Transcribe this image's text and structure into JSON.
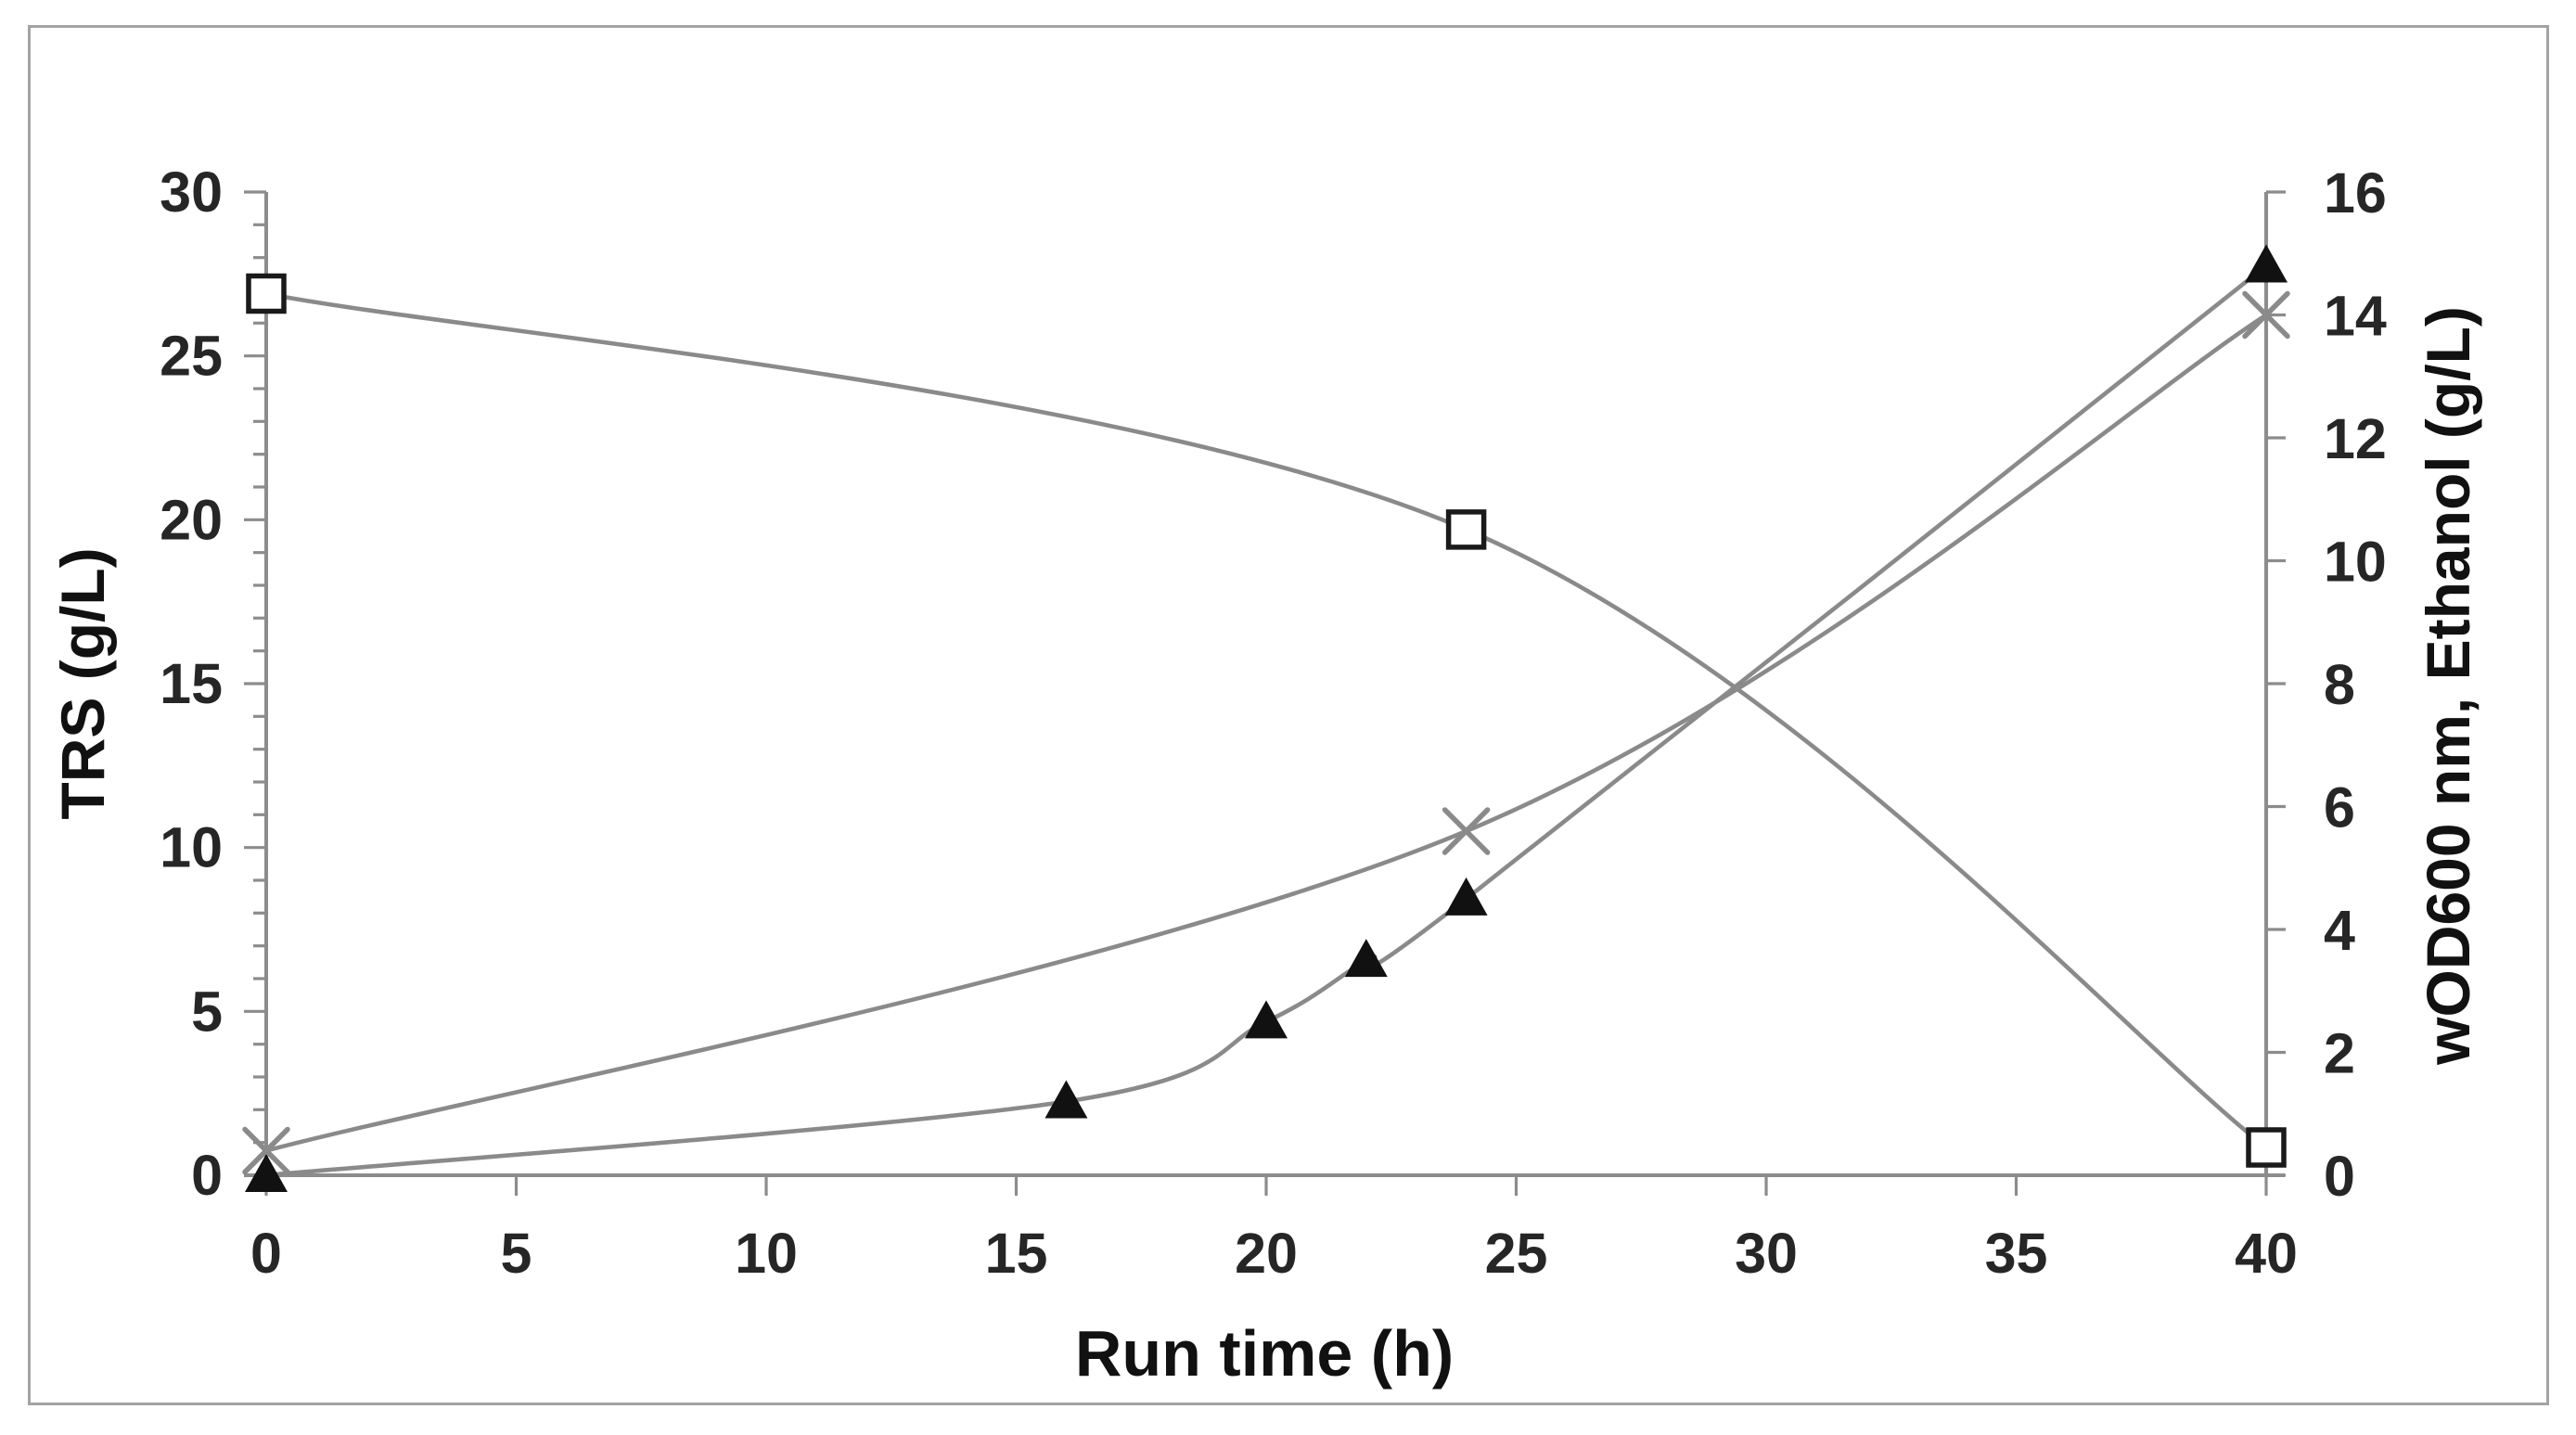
{
  "chart_data": {
    "type": "line",
    "title": "",
    "xlabel": "Run time (h)",
    "ylabel_left": "TRS (g/L)",
    "ylabel_right": "wOD600 nm, Ethanol (g/L)",
    "x_axis": {
      "min": 0,
      "max": 40,
      "tick_step": 5,
      "ticks": [
        0,
        5,
        10,
        15,
        20,
        25,
        30,
        35,
        40
      ]
    },
    "y_left": {
      "min": 0,
      "max": 30,
      "tick_step": 5,
      "minor_tick_step": 1,
      "ticks": [
        0,
        5,
        10,
        15,
        20,
        25,
        30
      ]
    },
    "y_right": {
      "min": 0,
      "max": 16,
      "tick_step": 2,
      "ticks": [
        0,
        2,
        4,
        6,
        8,
        10,
        12,
        14,
        16
      ]
    },
    "grid": false,
    "legend": "none",
    "series": [
      {
        "name": "TRS",
        "axis": "left",
        "marker": "open-square",
        "x": [
          0,
          24,
          40
        ],
        "y": [
          26.9,
          19.7,
          0.85
        ]
      },
      {
        "name": "wOD600 nm",
        "axis": "right",
        "marker": "filled-triangle",
        "x": [
          0,
          16,
          20,
          22,
          24,
          40
        ],
        "y": [
          0.0,
          1.2,
          2.5,
          3.5,
          4.5,
          14.8
        ]
      },
      {
        "name": "Ethanol",
        "axis": "right",
        "marker": "x-cross",
        "x": [
          0,
          24,
          40
        ],
        "y": [
          0.4,
          5.6,
          14.0
        ]
      }
    ],
    "style": {
      "line_color": "#8a8a8a",
      "axis_color": "#8c8c8c",
      "marker_fill_dark": "#111111",
      "marker_outline": "#1a1a1a",
      "marker_open_fill": "#ffffff",
      "tick_text_color": "#262626",
      "title_text_color": "#111111",
      "frame_border_color": "#a3a3a3",
      "background": "#ffffff"
    }
  }
}
